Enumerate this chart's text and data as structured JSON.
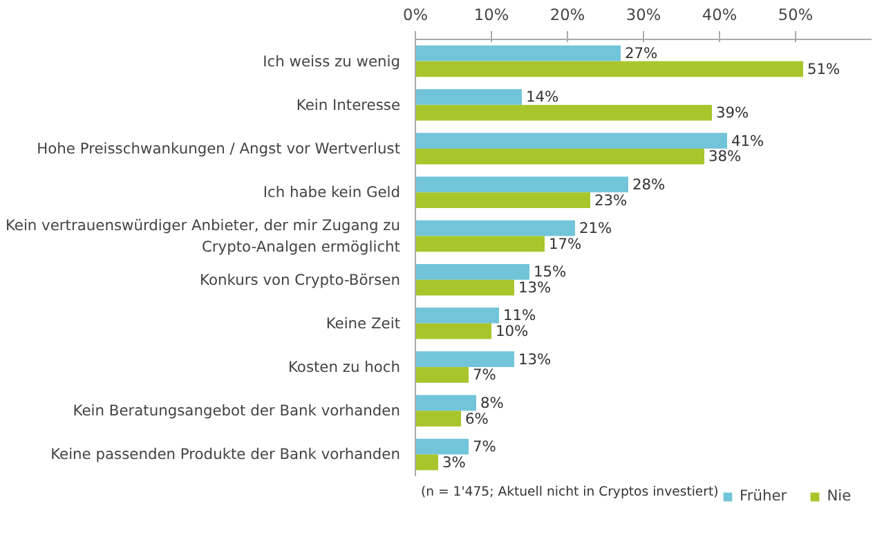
{
  "chart_data": {
    "type": "bar",
    "orientation": "horizontal",
    "categories": [
      "Ich weiss zu wenig",
      "Kein Interesse",
      "Hohe Preisschwankungen / Angst vor Wertverlust",
      "Ich habe kein Geld",
      "Kein vertrauenswürdiger Anbieter, der mir Zugang zu Crypto-Analgen ermöglicht",
      "Konkurs von Crypto-Börsen",
      "Keine Zeit",
      "Kosten zu hoch",
      "Kein Beratungsangebot der Bank vorhanden",
      "Keine passenden Produkte der Bank vorhanden"
    ],
    "series": [
      {
        "name": "Früher",
        "color": "#72c5d9",
        "values": [
          27,
          14,
          41,
          28,
          21,
          15,
          11,
          13,
          8,
          7
        ],
        "value_labels": [
          "27%",
          "14%",
          "41%",
          "28%",
          "21%",
          "15%",
          "11%",
          "13%",
          "8%",
          "7%"
        ]
      },
      {
        "name": "Nie",
        "color": "#a8c62c",
        "values": [
          51,
          39,
          38,
          23,
          17,
          13,
          10,
          7,
          6,
          3
        ],
        "value_labels": [
          "51%",
          "39%",
          "38%",
          "23%",
          "17%",
          "13%",
          "10%",
          "7%",
          "6%",
          "3%"
        ]
      }
    ],
    "xlim": [
      0,
      60
    ],
    "xticks": [
      {
        "value": 0,
        "label": "0%"
      },
      {
        "value": 10,
        "label": "10%"
      },
      {
        "value": 20,
        "label": "20%"
      },
      {
        "value": 30,
        "label": "30%"
      },
      {
        "value": 40,
        "label": "40%"
      },
      {
        "value": 50,
        "label": "50%"
      }
    ],
    "grid": false,
    "legend": "bottom",
    "annotations": [
      "(n = 1'475; Aktuell nicht in Cryptos investiert)"
    ]
  }
}
